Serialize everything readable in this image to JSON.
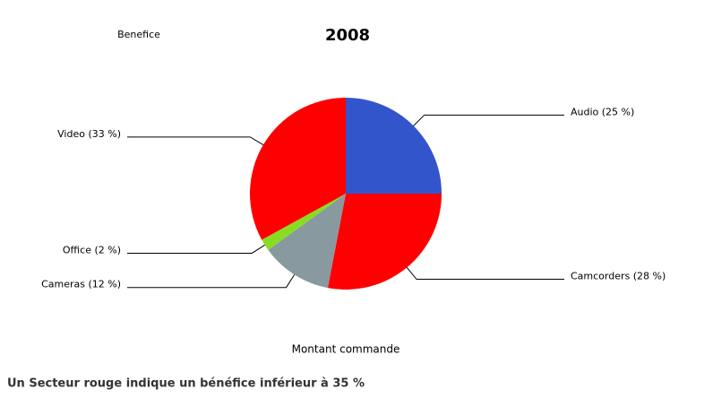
{
  "chart_data": {
    "type": "pie",
    "title": "2008",
    "subtitle": "Benefice",
    "x_label": "Montant commande",
    "note": "Un Secteur rouge indique un bénéfice inférieur à 35 %",
    "categories": [
      "Audio",
      "Camcorders",
      "Cameras",
      "Office",
      "Video"
    ],
    "values": [
      25,
      28,
      12,
      2,
      33
    ],
    "value_labels": [
      "Audio (25 %)",
      "Camcorders (28 %)",
      "Cameras (12 %)",
      "Office (2 %)",
      "Video (33 %)"
    ],
    "colors": [
      "#3355cc",
      "#ff0000",
      "#8899a0",
      "#88dd22",
      "#ff0000"
    ]
  }
}
